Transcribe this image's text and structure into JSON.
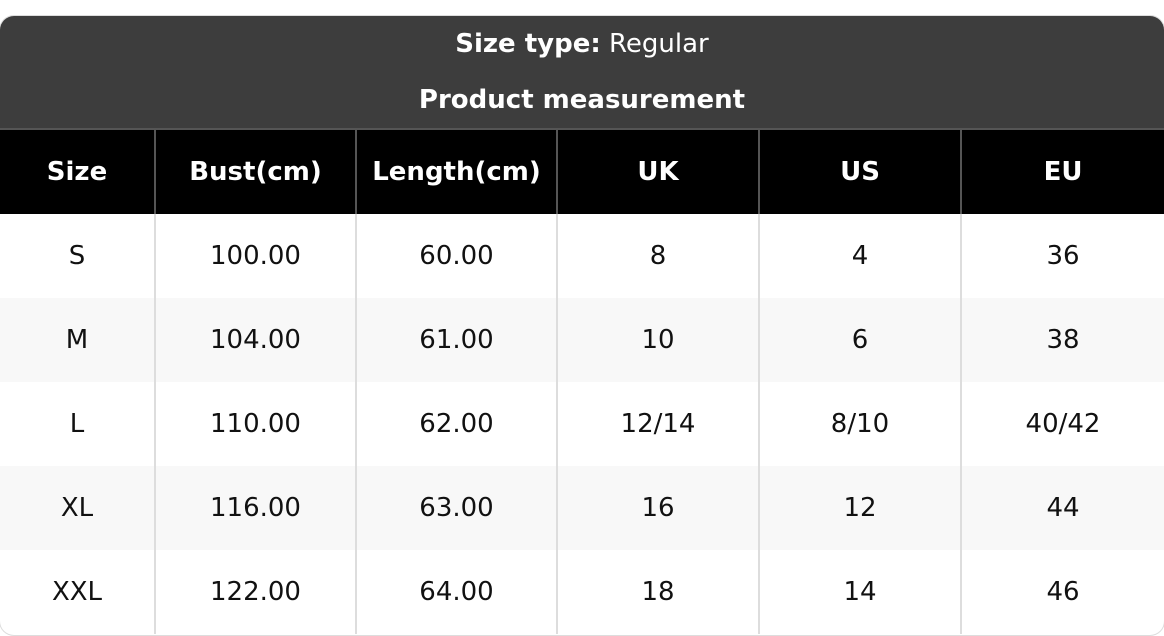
{
  "header": {
    "size_type_label": "Size type:",
    "size_type_value": "Regular",
    "subtitle": "Product measurement"
  },
  "table": {
    "columns": [
      "Size",
      "Bust(cm)",
      "Length(cm)",
      "UK",
      "US",
      "EU"
    ],
    "rows": [
      [
        "S",
        "100.00",
        "60.00",
        "8",
        "4",
        "36"
      ],
      [
        "M",
        "104.00",
        "61.00",
        "10",
        "6",
        "38"
      ],
      [
        "L",
        "110.00",
        "62.00",
        "12/14",
        "8/10",
        "40/42"
      ],
      [
        "XL",
        "116.00",
        "63.00",
        "16",
        "12",
        "44"
      ],
      [
        "XXL",
        "122.00",
        "64.00",
        "18",
        "14",
        "46"
      ]
    ]
  }
}
